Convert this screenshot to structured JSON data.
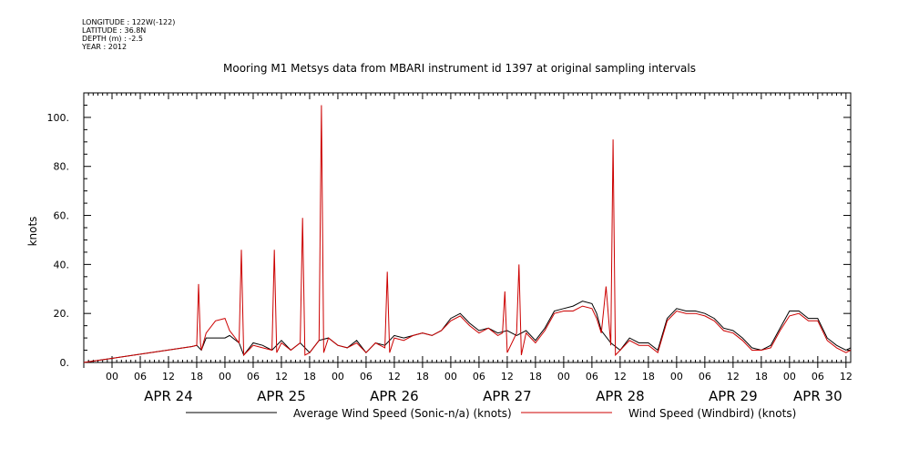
{
  "meta": {
    "longitude": "LONGITUDE : 122W(-122)",
    "latitude": "LATITUDE : 36.8N",
    "depth": "DEPTH (m) : -2.5",
    "year": "YEAR : 2012"
  },
  "chart_data": {
    "type": "line",
    "title": "Mooring M1 Metsys data from MBARI instrument id 1397 at original sampling intervals",
    "ylabel": "knots",
    "xlabel": "",
    "ylim": [
      0,
      110
    ],
    "yticks": [
      0,
      20,
      40,
      60,
      80,
      100
    ],
    "ytick_labels": [
      "0.",
      "20.",
      "40.",
      "60.",
      "80.",
      "100."
    ],
    "x_range_hours": [
      -6,
      157
    ],
    "hour_ticks": [
      "00",
      "06",
      "12",
      "18",
      "00",
      "06",
      "12",
      "18",
      "00",
      "06",
      "12",
      "18",
      "00",
      "06",
      "12",
      "18",
      "00",
      "06",
      "12",
      "18",
      "00",
      "06",
      "12",
      "18",
      "00",
      "06",
      "12"
    ],
    "day_labels": [
      {
        "label": "APR 24",
        "hour": 12
      },
      {
        "label": "APR 25",
        "hour": 36
      },
      {
        "label": "APR 26",
        "hour": 60
      },
      {
        "label": "APR 27",
        "hour": 84
      },
      {
        "label": "APR 28",
        "hour": 108
      },
      {
        "label": "APR 29",
        "hour": 132
      },
      {
        "label": "APR 30",
        "hour": 150
      }
    ],
    "legend_position": "bottom",
    "series": [
      {
        "name": "Average Wind Speed (Sonic-n/a) (knots)",
        "color": "#000000",
        "x": [
          -6,
          17,
          18,
          19,
          20,
          22,
          24,
          25,
          27,
          28,
          30,
          32,
          34,
          36,
          38,
          40,
          42,
          44,
          46,
          48,
          50,
          52,
          54,
          56,
          58,
          60,
          62,
          64,
          66,
          68,
          70,
          72,
          74,
          76,
          78,
          80,
          82,
          84,
          86,
          88,
          90,
          92,
          94,
          96,
          98,
          100,
          102,
          103,
          104,
          106,
          108,
          110,
          112,
          114,
          116,
          118,
          120,
          122,
          124,
          126,
          128,
          130,
          132,
          134,
          136,
          138,
          140,
          142,
          144,
          146,
          148,
          150,
          152,
          154,
          156,
          157
        ],
        "y": [
          0,
          6.5,
          7,
          5,
          10,
          10,
          10,
          11,
          8,
          3,
          8,
          7,
          5,
          9,
          5,
          8,
          4,
          9,
          10,
          7,
          6,
          9,
          4,
          8,
          7,
          11,
          10,
          11,
          12,
          11,
          13,
          18,
          20,
          16,
          13,
          14,
          12,
          13,
          11,
          13,
          9,
          14,
          21,
          22,
          23,
          25,
          24,
          20,
          13,
          8,
          5,
          10,
          8,
          8,
          5,
          18,
          22,
          21,
          21,
          20,
          18,
          14,
          13,
          10,
          6,
          5,
          7,
          14,
          21,
          21,
          18,
          18,
          10,
          7,
          5,
          6
        ]
      },
      {
        "name": "Wind Speed (Windbird) (knots)",
        "color": "#cc0000",
        "x": [
          -6,
          17,
          18,
          18.4,
          18.8,
          19,
          20,
          22,
          24,
          25,
          27,
          27.5,
          28,
          30,
          32,
          34,
          34.5,
          35,
          36,
          38,
          40,
          40.5,
          41,
          42,
          44,
          44.5,
          45,
          46,
          48,
          50,
          52,
          54,
          56,
          58,
          58.5,
          59,
          60,
          62,
          64,
          66,
          68,
          70,
          72,
          74,
          76,
          78,
          80,
          82,
          83,
          83.5,
          84,
          86,
          86.5,
          87,
          88,
          90,
          92,
          94,
          96,
          98,
          100,
          102,
          103,
          104,
          105,
          106,
          106.5,
          107,
          108,
          110,
          112,
          114,
          116,
          118,
          120,
          122,
          124,
          126,
          128,
          130,
          132,
          134,
          136,
          138,
          140,
          142,
          144,
          146,
          148,
          150,
          152,
          154,
          156,
          157
        ],
        "y": [
          0,
          6.5,
          7,
          32,
          8,
          5,
          12,
          17,
          18,
          13,
          8,
          46,
          3,
          7,
          6,
          5,
          46,
          4,
          8,
          5,
          8,
          59,
          3,
          4,
          9,
          105,
          4,
          10,
          7,
          6,
          8,
          4,
          8,
          6,
          37,
          4,
          10,
          9,
          11,
          12,
          11,
          13,
          17,
          19,
          15,
          12,
          14,
          11,
          12,
          29,
          4,
          12,
          40,
          3,
          12,
          8,
          13,
          20,
          21,
          21,
          23,
          22,
          18,
          12,
          31,
          7,
          91,
          3,
          5,
          9,
          7,
          7,
          4,
          17,
          21,
          20,
          20,
          19,
          17,
          13,
          12,
          9,
          5,
          5,
          6,
          13,
          19,
          20,
          17,
          17,
          9,
          6,
          4,
          5
        ]
      }
    ]
  }
}
